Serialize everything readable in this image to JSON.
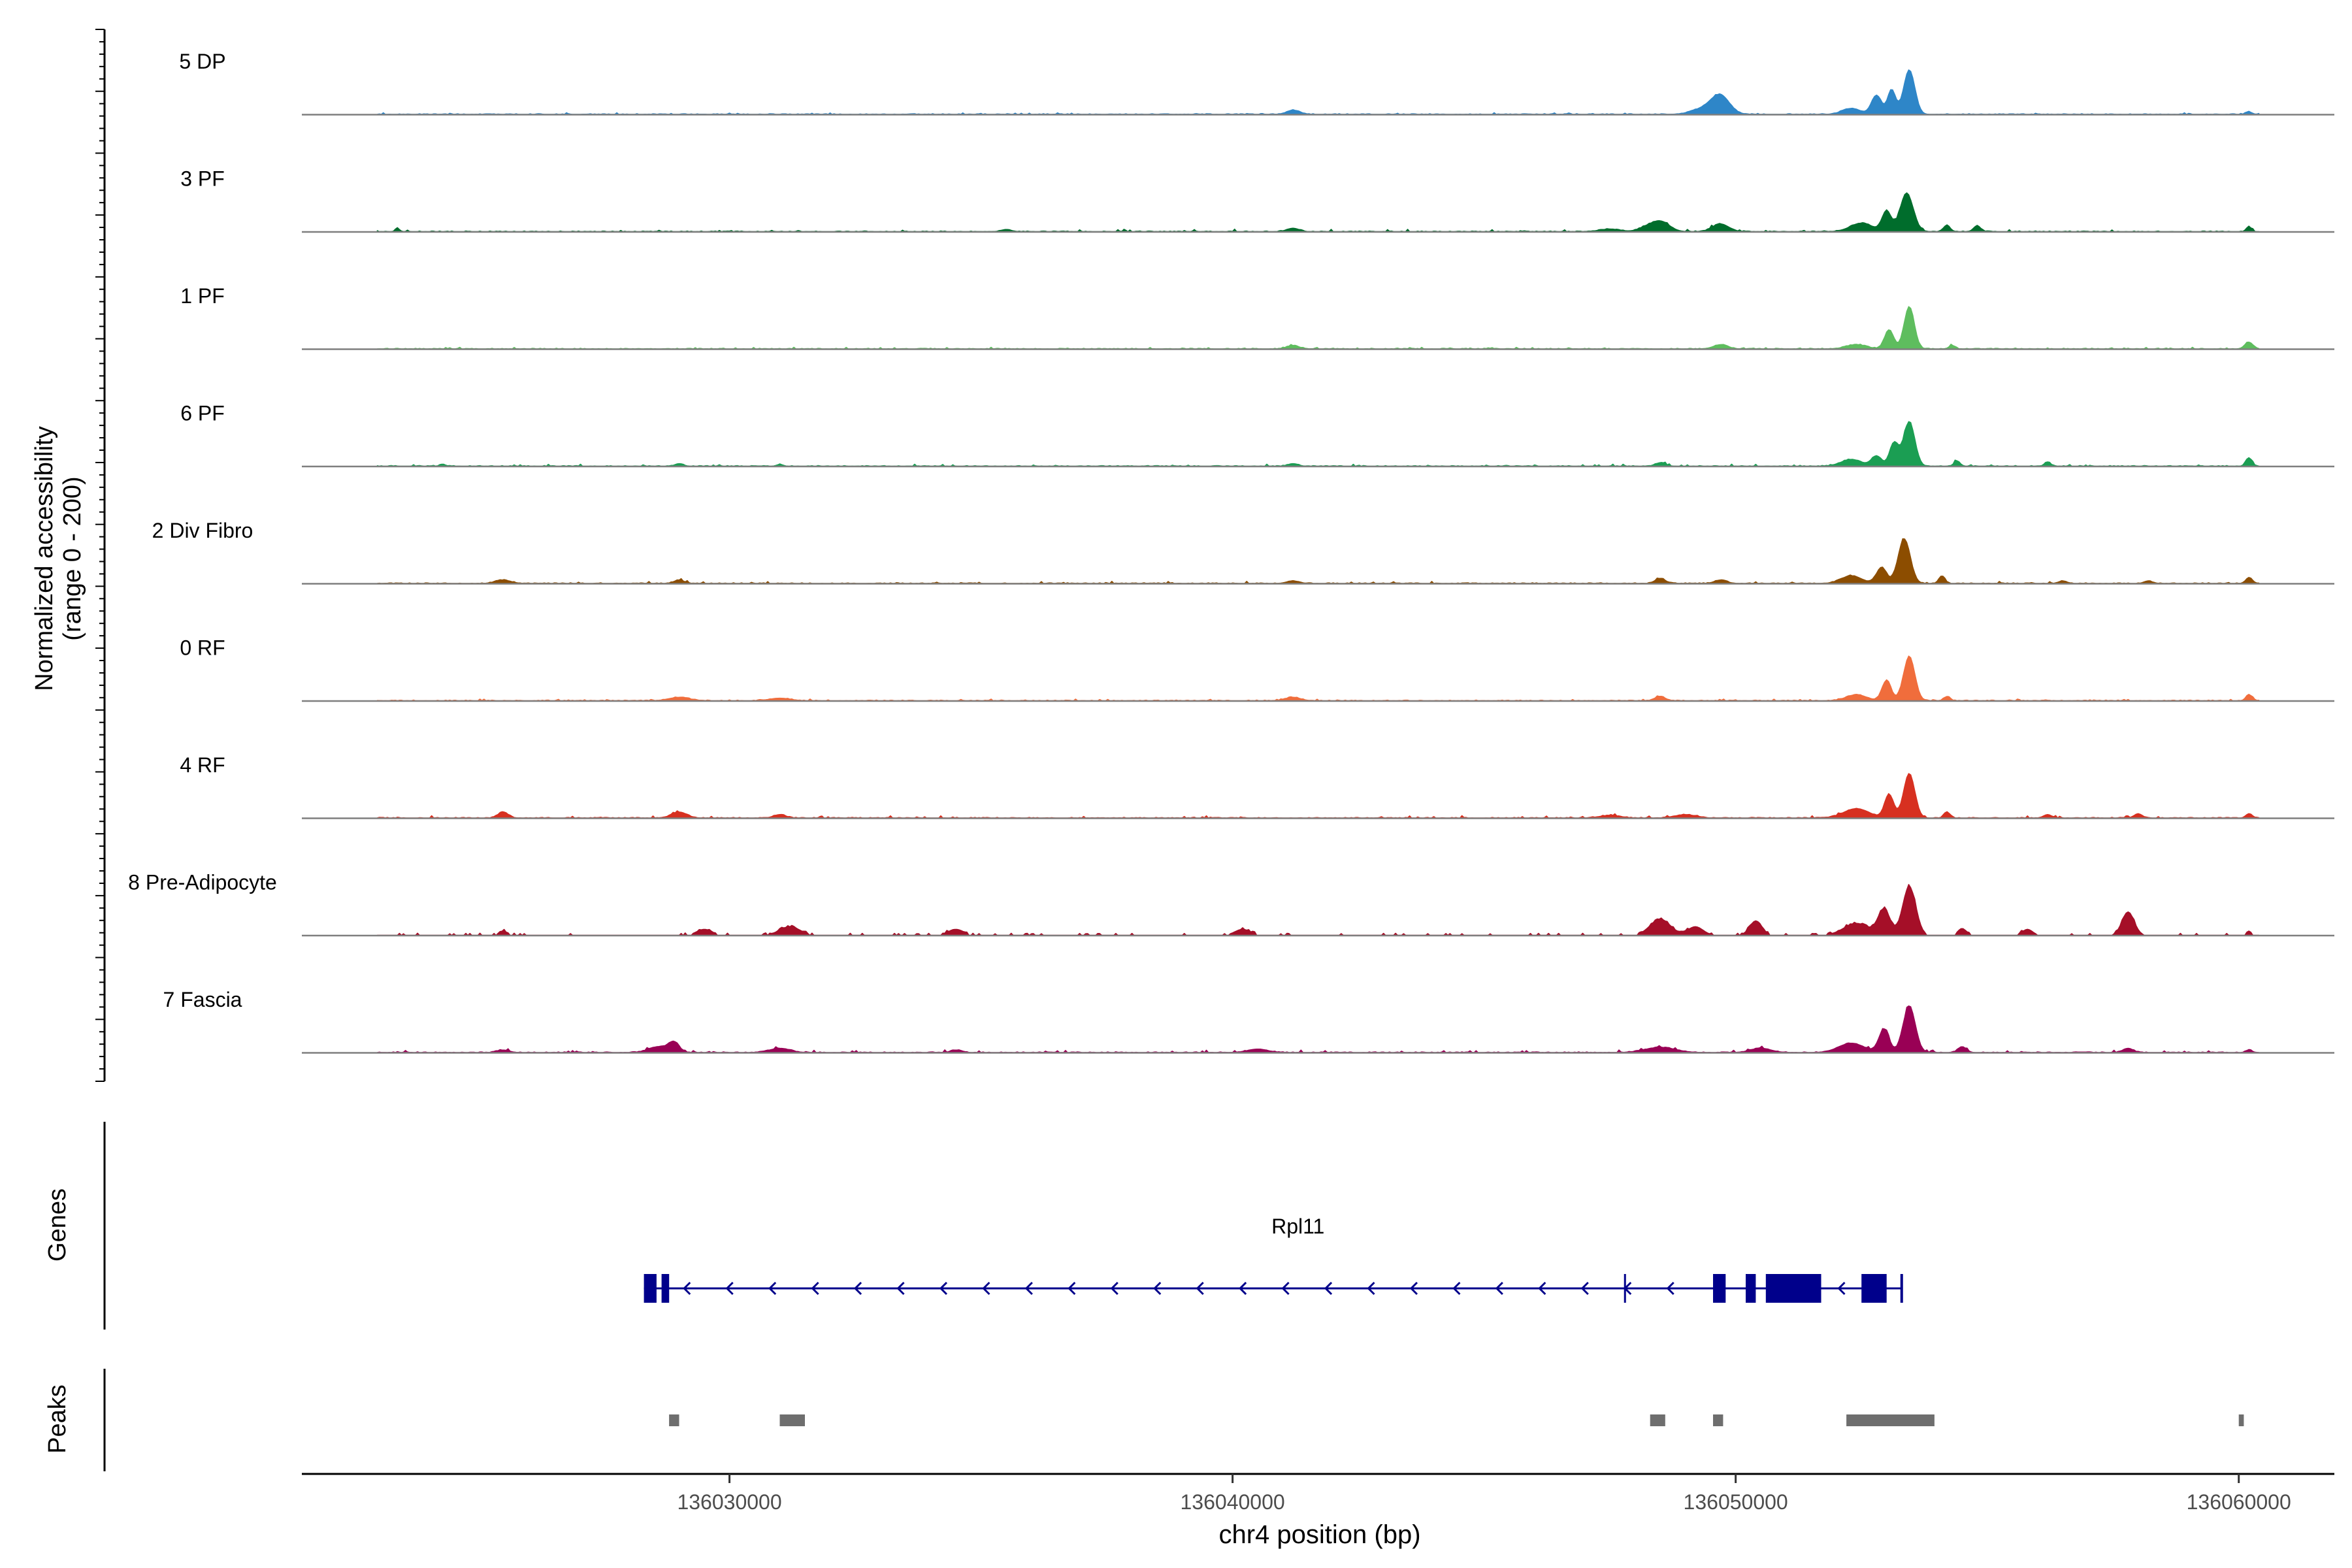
{
  "chart_data": {
    "type": "area",
    "title": "",
    "ylabel": "Normalized accessibility\n(range 0 - 200)",
    "ylim": [
      0,
      200
    ],
    "xlabel": "chr4 position (bp)",
    "xlim": [
      136021500,
      136061900
    ],
    "x_ticks": [
      136030000,
      136040000,
      136050000,
      136060000
    ],
    "x_tick_labels": [
      "136030000",
      "136040000",
      "136050000",
      "136060000"
    ],
    "series": [
      {
        "name": "5 DP",
        "color": "#2E86C8",
        "baseline": 3,
        "noise": 4,
        "dense": false,
        "peaks": [
          [
            136041200,
            10,
            120
          ],
          [
            136049400,
            14,
            250
          ],
          [
            136049700,
            40,
            180
          ],
          [
            136052300,
            14,
            180
          ],
          [
            136052800,
            45,
            100
          ],
          [
            136053100,
            58,
            80
          ],
          [
            136053450,
            105,
            110
          ],
          [
            136060200,
            6,
            60
          ]
        ]
      },
      {
        "name": "3 PF",
        "color": "#006D2C",
        "baseline": 3,
        "noise": 6,
        "dense": false,
        "peaks": [
          [
            136023400,
            8,
            40
          ],
          [
            136035500,
            5,
            100
          ],
          [
            136041200,
            8,
            120
          ],
          [
            136047500,
            6,
            200
          ],
          [
            136048200,
            8,
            150
          ],
          [
            136048500,
            24,
            180
          ],
          [
            136049700,
            18,
            160
          ],
          [
            136052500,
            20,
            220
          ],
          [
            136053000,
            48,
            90
          ],
          [
            136053400,
            90,
            130
          ],
          [
            136054200,
            16,
            60
          ],
          [
            136054800,
            14,
            70
          ],
          [
            136060200,
            12,
            50
          ]
        ]
      },
      {
        "name": "1 PF",
        "color": "#5EBD5E",
        "baseline": 3,
        "noise": 4,
        "dense": false,
        "peaks": [
          [
            136041200,
            8,
            120
          ],
          [
            136049700,
            10,
            140
          ],
          [
            136052400,
            10,
            200
          ],
          [
            136053050,
            45,
            90
          ],
          [
            136053450,
            100,
            100
          ],
          [
            136054300,
            8,
            60
          ],
          [
            136060200,
            16,
            80
          ]
        ]
      },
      {
        "name": "6 PF",
        "color": "#1B9E53",
        "baseline": 3,
        "noise": 5,
        "dense": false,
        "peaks": [
          [
            136024300,
            4,
            60
          ],
          [
            136029000,
            6,
            80
          ],
          [
            136031000,
            4,
            60
          ],
          [
            136041200,
            6,
            100
          ],
          [
            136048500,
            8,
            100
          ],
          [
            136052300,
            16,
            200
          ],
          [
            136052800,
            24,
            100
          ],
          [
            136053150,
            55,
            90
          ],
          [
            136053450,
            105,
            110
          ],
          [
            136054400,
            12,
            60
          ],
          [
            136056200,
            10,
            60
          ],
          [
            136060200,
            20,
            60
          ]
        ]
      },
      {
        "name": "2 Div Fibro",
        "color": "#8C4D00",
        "baseline": 3,
        "noise": 5,
        "dense": false,
        "peaks": [
          [
            136025500,
            8,
            150
          ],
          [
            136029000,
            8,
            100
          ],
          [
            136041200,
            6,
            120
          ],
          [
            136048500,
            12,
            100
          ],
          [
            136049700,
            8,
            120
          ],
          [
            136052300,
            18,
            200
          ],
          [
            136052900,
            38,
            100
          ],
          [
            136053350,
            105,
            120
          ],
          [
            136054100,
            18,
            60
          ],
          [
            136056500,
            6,
            80
          ],
          [
            136058200,
            6,
            80
          ],
          [
            136060200,
            14,
            60
          ]
        ]
      },
      {
        "name": "0 RF",
        "color": "#F06D3C",
        "baseline": 3,
        "noise": 4,
        "dense": false,
        "peaks": [
          [
            136029000,
            8,
            200
          ],
          [
            136031000,
            6,
            200
          ],
          [
            136041200,
            8,
            150
          ],
          [
            136048500,
            10,
            100
          ],
          [
            136052400,
            14,
            200
          ],
          [
            136053000,
            48,
            90
          ],
          [
            136053450,
            105,
            110
          ],
          [
            136054200,
            10,
            60
          ],
          [
            136060200,
            14,
            60
          ]
        ]
      },
      {
        "name": "4 RF",
        "color": "#D73020",
        "baseline": 3,
        "noise": 6,
        "dense": false,
        "peaks": [
          [
            136025500,
            14,
            100
          ],
          [
            136029000,
            14,
            150
          ],
          [
            136031000,
            8,
            120
          ],
          [
            136047500,
            6,
            200
          ],
          [
            136049000,
            8,
            200
          ],
          [
            136052400,
            22,
            250
          ],
          [
            136053050,
            55,
            90
          ],
          [
            136053450,
            105,
            110
          ],
          [
            136054200,
            14,
            60
          ],
          [
            136056200,
            8,
            80
          ],
          [
            136058000,
            10,
            80
          ],
          [
            136060200,
            10,
            60
          ]
        ]
      },
      {
        "name": "8 Pre-Adipocyte",
        "color": "#A50F28",
        "baseline": 0,
        "noise": 14,
        "dense": true,
        "peaks": [
          [
            136025500,
            10,
            80
          ],
          [
            136029500,
            14,
            150
          ],
          [
            136031200,
            20,
            200
          ],
          [
            136034500,
            14,
            150
          ],
          [
            136040200,
            14,
            150
          ],
          [
            136048500,
            38,
            200
          ],
          [
            136049200,
            20,
            150
          ],
          [
            136050400,
            34,
            120
          ],
          [
            136052400,
            28,
            250
          ],
          [
            136052950,
            60,
            120
          ],
          [
            136053450,
            115,
            130
          ],
          [
            136054500,
            16,
            80
          ],
          [
            136055800,
            14,
            100
          ],
          [
            136057800,
            55,
            120
          ],
          [
            136060200,
            10,
            50
          ]
        ]
      },
      {
        "name": "7 Fascia",
        "color": "#990055",
        "baseline": 3,
        "noise": 6,
        "dense": false,
        "peaks": [
          [
            136025500,
            6,
            120
          ],
          [
            136028600,
            14,
            200
          ],
          [
            136028900,
            22,
            100
          ],
          [
            136031000,
            10,
            200
          ],
          [
            136034500,
            6,
            100
          ],
          [
            136040500,
            8,
            200
          ],
          [
            136048500,
            12,
            300
          ],
          [
            136050500,
            10,
            200
          ],
          [
            136052300,
            22,
            250
          ],
          [
            136052950,
            55,
            100
          ],
          [
            136053450,
            110,
            120
          ],
          [
            136054500,
            14,
            80
          ],
          [
            136057800,
            10,
            100
          ],
          [
            136060200,
            6,
            60
          ]
        ]
      }
    ],
    "gene_track": {
      "label": "Genes",
      "gene_name": "Rpl11",
      "strand": "-",
      "start": 136028300,
      "end": 136053300,
      "exons": [
        [
          136028300,
          136028550
        ],
        [
          136028650,
          136028800
        ],
        [
          136049550,
          136049800
        ],
        [
          136050200,
          136050400
        ],
        [
          136050600,
          136051700
        ],
        [
          136052500,
          136053000
        ]
      ],
      "marker": 136047800,
      "color": "#00008B"
    },
    "peak_track": {
      "label": "Peaks",
      "color": "#6E6E6E",
      "regions": [
        [
          136028800,
          136029000
        ],
        [
          136031000,
          136031500
        ],
        [
          136048300,
          136048600
        ],
        [
          136049550,
          136049750
        ],
        [
          136052200,
          136053950
        ],
        [
          136060000,
          136060100
        ]
      ]
    }
  }
}
